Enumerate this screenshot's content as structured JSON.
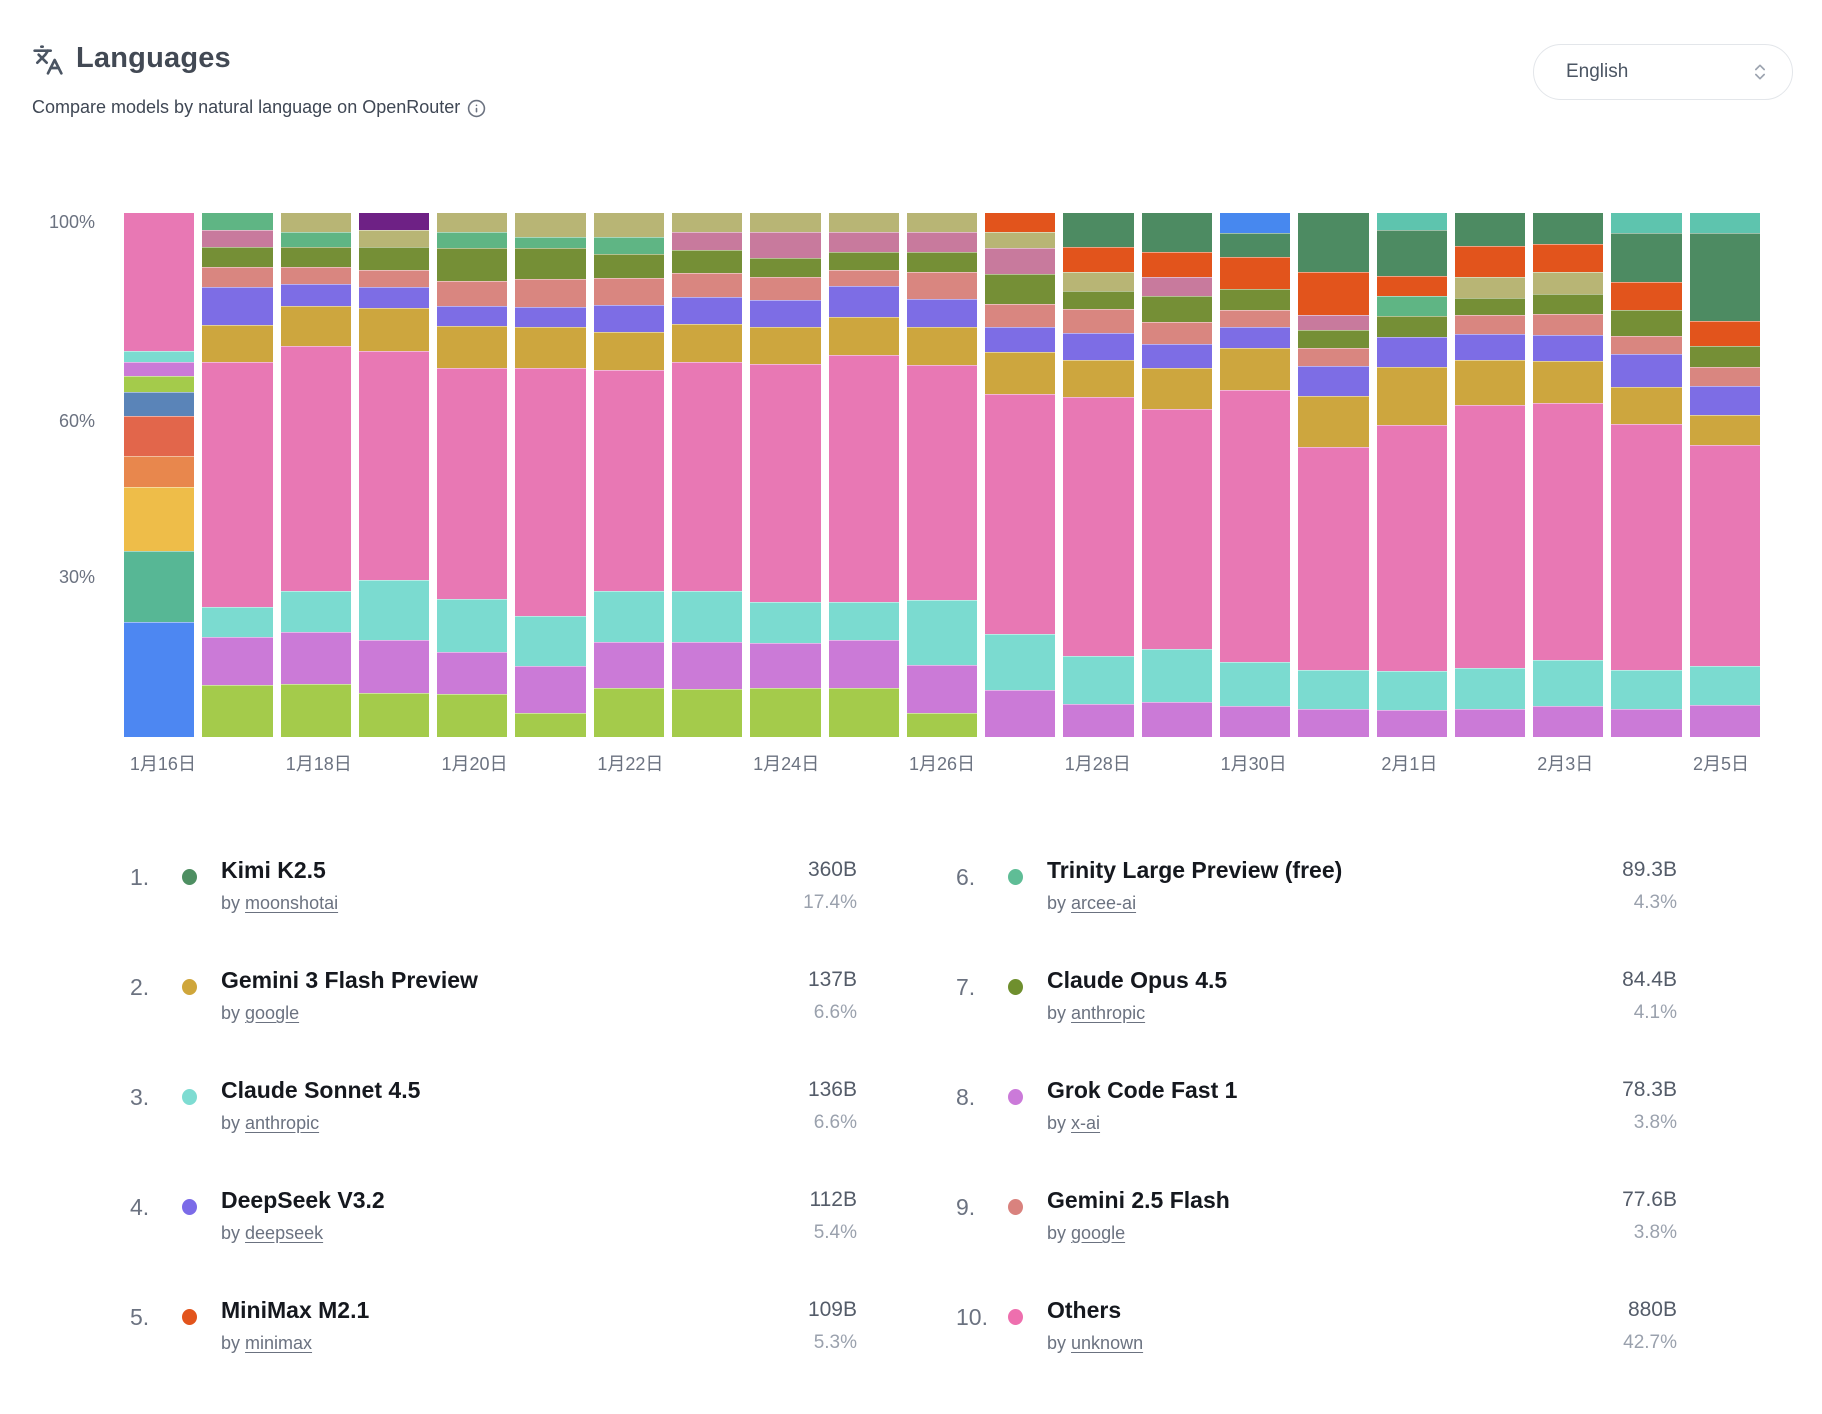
{
  "header": {
    "title": "Languages",
    "subtitle": "Compare models by natural language on OpenRouter",
    "language_selector": {
      "value": "English"
    }
  },
  "legend": {
    "by_label": "by",
    "items": [
      {
        "rank": "1.",
        "name": "Kimi K2.5",
        "provider": "moonshotai",
        "value": "360B",
        "share": "17.4%",
        "color": "#4e8f62"
      },
      {
        "rank": "2.",
        "name": "Gemini 3 Flash Preview",
        "provider": "google",
        "value": "137B",
        "share": "6.6%",
        "color": "#cfa63b"
      },
      {
        "rank": "3.",
        "name": "Claude Sonnet 4.5",
        "provider": "anthropic",
        "value": "136B",
        "share": "6.6%",
        "color": "#7edcd2"
      },
      {
        "rank": "4.",
        "name": "DeepSeek V3.2",
        "provider": "deepseek",
        "value": "112B",
        "share": "5.4%",
        "color": "#7b6be8"
      },
      {
        "rank": "5.",
        "name": "MiniMax M2.1",
        "provider": "minimax",
        "value": "109B",
        "share": "5.3%",
        "color": "#e2541c"
      },
      {
        "rank": "6.",
        "name": "Trinity Large Preview (free)",
        "provider": "arcee-ai",
        "value": "89.3B",
        "share": "4.3%",
        "color": "#5fbd96"
      },
      {
        "rank": "7.",
        "name": "Claude Opus 4.5",
        "provider": "anthropic",
        "value": "84.4B",
        "share": "4.1%",
        "color": "#6f8f2e"
      },
      {
        "rank": "8.",
        "name": "Grok Code Fast 1",
        "provider": "x-ai",
        "value": "78.3B",
        "share": "3.8%",
        "color": "#cb7ad9"
      },
      {
        "rank": "9.",
        "name": "Gemini 2.5 Flash",
        "provider": "google",
        "value": "77.6B",
        "share": "3.8%",
        "color": "#d9827e"
      },
      {
        "rank": "10.",
        "name": "Others",
        "provider": "unknown",
        "value": "880B",
        "share": "42.7%",
        "color": "#ee6fae"
      }
    ]
  },
  "chart_data": {
    "type": "bar",
    "subtype": "stacked-percentage",
    "title": "Languages — share of tokens per day",
    "ylim": [
      0,
      100
    ],
    "grid": false,
    "y_tick_labels": [
      "100%",
      "60%",
      "30%"
    ],
    "x_tick_labels": [
      "1月16日",
      "1月18日",
      "1月20日",
      "1月22日",
      "1月24日",
      "1月26日",
      "1月28日",
      "1月30日",
      "2月1日",
      "2月3日",
      "2月5日"
    ],
    "colors": {
      "others": "#e878b4",
      "sonnet": "#7bdbd0",
      "grok": "#cb7ad7",
      "ygreen": "#a4cb4b",
      "gemini3": "#cda63e",
      "deepseek": "#7d6de5",
      "gemini25": "#d98680",
      "opus": "#758f36",
      "trinity": "#5fb584",
      "kimi": "#4d8b62",
      "khaki": "#b8b575",
      "mauve": "#c87a9d",
      "minimax": "#e2541c",
      "purple": "#6e2185",
      "blue": "#4788ef",
      "lteal": "#5ec4ae",
      "steel": "#5a84b8",
      "orange": "#e8874d",
      "redor": "#e2664b",
      "amber": "#eebd49",
      "tealgr": "#57b795",
      "bblue": "#4d87f2"
    },
    "series_note": "segments listed top-to-bottom, values are percent of day total",
    "days": [
      {
        "d": "1月16日",
        "s": [
          [
            "others",
            26.3
          ],
          [
            "sonnet",
            2.1
          ],
          [
            "grok",
            2.7
          ],
          [
            "ygreen",
            3.1
          ],
          [
            "steel",
            4.6
          ],
          [
            "redor",
            7.6
          ],
          [
            "orange",
            5.9
          ],
          [
            "amber",
            12.2
          ],
          [
            "tealgr",
            13.6
          ],
          [
            "bblue",
            21.9
          ]
        ]
      },
      {
        "d": "1月17日",
        "s": [
          [
            "trinity",
            3.3
          ],
          [
            "mauve",
            3.2
          ],
          [
            "opus",
            3.8
          ],
          [
            "gemini25",
            3.8
          ],
          [
            "deepseek",
            7.3
          ],
          [
            "gemini3",
            7.0
          ],
          [
            "others",
            46.8
          ],
          [
            "sonnet",
            5.7
          ],
          [
            "grok",
            9.2
          ],
          [
            "ygreen",
            9.9
          ]
        ]
      },
      {
        "d": "1月18日",
        "s": [
          [
            "khaki",
            3.6
          ],
          [
            "trinity",
            2.8
          ],
          [
            "opus",
            4.0
          ],
          [
            "gemini25",
            3.2
          ],
          [
            "deepseek",
            4.1
          ],
          [
            "gemini3",
            7.6
          ],
          [
            "others",
            46.8
          ],
          [
            "sonnet",
            7.8
          ],
          [
            "grok",
            10.0
          ],
          [
            "ygreen",
            10.1
          ]
        ]
      },
      {
        "d": "1月19日",
        "s": [
          [
            "purple",
            3.3
          ],
          [
            "khaki",
            3.2
          ],
          [
            "opus",
            4.4
          ],
          [
            "gemini25",
            3.2
          ],
          [
            "deepseek",
            4.0
          ],
          [
            "gemini3",
            8.3
          ],
          [
            "others",
            43.6
          ],
          [
            "sonnet",
            11.5
          ],
          [
            "grok",
            10.1
          ],
          [
            "ygreen",
            8.4
          ]
        ]
      },
      {
        "d": "1月20日",
        "s": [
          [
            "khaki",
            3.6
          ],
          [
            "trinity",
            3.0
          ],
          [
            "opus",
            6.3
          ],
          [
            "gemini25",
            4.8
          ],
          [
            "deepseek",
            3.8
          ],
          [
            "gemini3",
            8.1
          ],
          [
            "others",
            44.0
          ],
          [
            "sonnet",
            10.1
          ],
          [
            "grok",
            8.2
          ],
          [
            "ygreen",
            8.1
          ]
        ]
      },
      {
        "d": "1月21日",
        "s": [
          [
            "khaki",
            4.6
          ],
          [
            "trinity",
            2.0
          ],
          [
            "opus",
            6.0
          ],
          [
            "gemini25",
            5.3
          ],
          [
            "deepseek",
            3.8
          ],
          [
            "gemini3",
            7.9
          ],
          [
            "others",
            47.3
          ],
          [
            "sonnet",
            9.5
          ],
          [
            "grok",
            9.0
          ],
          [
            "ygreen",
            4.6
          ]
        ]
      },
      {
        "d": "1月22日",
        "s": [
          [
            "khaki",
            4.6
          ],
          [
            "trinity",
            3.2
          ],
          [
            "opus",
            4.6
          ],
          [
            "gemini25",
            5.2
          ],
          [
            "deepseek",
            5.1
          ],
          [
            "gemini3",
            7.2
          ],
          [
            "others",
            42.3
          ],
          [
            "sonnet",
            9.6
          ],
          [
            "grok",
            8.8
          ],
          [
            "ygreen",
            9.4
          ]
        ]
      },
      {
        "d": "1月23日",
        "s": [
          [
            "khaki",
            3.6
          ],
          [
            "mauve",
            3.4
          ],
          [
            "opus",
            4.4
          ],
          [
            "gemini25",
            4.6
          ],
          [
            "deepseek",
            5.1
          ],
          [
            "gemini3",
            7.4
          ],
          [
            "others",
            43.7
          ],
          [
            "sonnet",
            9.6
          ],
          [
            "grok",
            9.0
          ],
          [
            "ygreen",
            9.2
          ]
        ]
      },
      {
        "d": "1月24日",
        "s": [
          [
            "khaki",
            3.6
          ],
          [
            "mauve",
            4.9
          ],
          [
            "opus",
            3.8
          ],
          [
            "gemini25",
            4.3
          ],
          [
            "deepseek",
            5.2
          ],
          [
            "gemini3",
            7.0
          ],
          [
            "others",
            45.4
          ],
          [
            "sonnet",
            7.8
          ],
          [
            "grok",
            8.6
          ],
          [
            "ygreen",
            9.4
          ]
        ]
      },
      {
        "d": "1月25日",
        "s": [
          [
            "khaki",
            3.6
          ],
          [
            "mauve",
            3.8
          ],
          [
            "opus",
            3.4
          ],
          [
            "gemini25",
            3.1
          ],
          [
            "deepseek",
            6.0
          ],
          [
            "gemini3",
            7.2
          ],
          [
            "others",
            47.1
          ],
          [
            "sonnet",
            7.3
          ],
          [
            "grok",
            9.2
          ],
          [
            "ygreen",
            9.3
          ]
        ]
      },
      {
        "d": "1月26日",
        "s": [
          [
            "khaki",
            3.6
          ],
          [
            "mauve",
            3.8
          ],
          [
            "opus",
            3.8
          ],
          [
            "gemini25",
            5.2
          ],
          [
            "deepseek",
            5.3
          ],
          [
            "gemini3",
            7.4
          ],
          [
            "others",
            44.7
          ],
          [
            "sonnet",
            12.4
          ],
          [
            "grok",
            9.2
          ],
          [
            "ygreen",
            4.6
          ]
        ]
      },
      {
        "d": "1月27日",
        "s": [
          [
            "minimax",
            3.6
          ],
          [
            "khaki",
            3.0
          ],
          [
            "mauve",
            5.0
          ],
          [
            "opus",
            5.8
          ],
          [
            "gemini25",
            4.3
          ],
          [
            "deepseek",
            4.9
          ],
          [
            "gemini3",
            8.0
          ],
          [
            "others",
            45.7
          ],
          [
            "sonnet",
            10.7
          ],
          [
            "grok",
            9.0
          ]
        ]
      },
      {
        "d": "1月28日",
        "s": [
          [
            "kimi",
            6.4
          ],
          [
            "minimax",
            4.8
          ],
          [
            "khaki",
            3.6
          ],
          [
            "opus",
            3.6
          ],
          [
            "gemini25",
            4.5
          ],
          [
            "deepseek",
            5.1
          ],
          [
            "gemini3",
            7.2
          ],
          [
            "others",
            49.3
          ],
          [
            "sonnet",
            9.2
          ],
          [
            "grok",
            6.3
          ]
        ]
      },
      {
        "d": "1月29日",
        "s": [
          [
            "kimi",
            7.4
          ],
          [
            "minimax",
            4.8
          ],
          [
            "mauve",
            3.7
          ],
          [
            "opus",
            4.9
          ],
          [
            "gemini25",
            4.2
          ],
          [
            "deepseek",
            4.5
          ],
          [
            "gemini3",
            8.0
          ],
          [
            "others",
            45.8
          ],
          [
            "sonnet",
            10.0
          ],
          [
            "grok",
            6.7
          ]
        ]
      },
      {
        "d": "1月30日",
        "s": [
          [
            "blue",
            3.9
          ],
          [
            "kimi",
            4.5
          ],
          [
            "minimax",
            6.1
          ],
          [
            "opus",
            4.0
          ],
          [
            "gemini25",
            3.3
          ],
          [
            "deepseek",
            3.9
          ],
          [
            "gemini3",
            8.0
          ],
          [
            "others",
            52.0
          ],
          [
            "sonnet",
            8.4
          ],
          [
            "grok",
            5.9
          ]
        ]
      },
      {
        "d": "1月31日",
        "s": [
          [
            "kimi",
            11.2
          ],
          [
            "minimax",
            8.3
          ],
          [
            "mauve",
            2.8
          ],
          [
            "opus",
            3.5
          ],
          [
            "gemini25",
            3.4
          ],
          [
            "deepseek",
            5.7
          ],
          [
            "gemini3",
            9.7
          ],
          [
            "others",
            42.7
          ],
          [
            "sonnet",
            7.3
          ],
          [
            "grok",
            5.4
          ]
        ]
      },
      {
        "d": "2月1日",
        "s": [
          [
            "lteal",
            3.3
          ],
          [
            "kimi",
            8.8
          ],
          [
            "minimax",
            3.8
          ],
          [
            "trinity",
            3.8
          ],
          [
            "opus",
            4.0
          ],
          [
            "deepseek",
            5.7
          ],
          [
            "gemini3",
            11.0
          ],
          [
            "others",
            47.1
          ],
          [
            "sonnet",
            7.3
          ],
          [
            "grok",
            5.2
          ]
        ]
      },
      {
        "d": "2月2日",
        "s": [
          [
            "kimi",
            6.3
          ],
          [
            "minimax",
            5.9
          ],
          [
            "khaki",
            4.0
          ],
          [
            "opus",
            3.2
          ],
          [
            "gemini25",
            3.7
          ],
          [
            "deepseek",
            5.0
          ],
          [
            "gemini3",
            8.6
          ],
          [
            "others",
            50.2
          ],
          [
            "sonnet",
            7.7
          ],
          [
            "grok",
            5.4
          ]
        ]
      },
      {
        "d": "2月3日",
        "s": [
          [
            "kimi",
            6.0
          ],
          [
            "minimax",
            5.2
          ],
          [
            "khaki",
            4.2
          ],
          [
            "opus",
            3.8
          ],
          [
            "gemini25",
            4.0
          ],
          [
            "deepseek",
            5.0
          ],
          [
            "gemini3",
            8.0
          ],
          [
            "others",
            49.1
          ],
          [
            "sonnet",
            8.8
          ],
          [
            "grok",
            5.9
          ]
        ]
      },
      {
        "d": "2月4日",
        "s": [
          [
            "lteal",
            3.9
          ],
          [
            "kimi",
            9.3
          ],
          [
            "minimax",
            5.3
          ],
          [
            "opus",
            5.0
          ],
          [
            "gemini25",
            3.4
          ],
          [
            "deepseek",
            6.3
          ],
          [
            "gemini3",
            7.0
          ],
          [
            "others",
            47.1
          ],
          [
            "sonnet",
            7.3
          ],
          [
            "grok",
            5.4
          ]
        ]
      },
      {
        "d": "2月5日",
        "s": [
          [
            "lteal",
            3.9
          ],
          [
            "kimi",
            16.7
          ],
          [
            "minimax",
            4.8
          ],
          [
            "opus",
            4.0
          ],
          [
            "gemini25",
            3.7
          ],
          [
            "deepseek",
            5.5
          ],
          [
            "gemini3",
            5.7
          ],
          [
            "others",
            42.2
          ],
          [
            "sonnet",
            7.5
          ],
          [
            "grok",
            6.0
          ]
        ]
      }
    ]
  }
}
